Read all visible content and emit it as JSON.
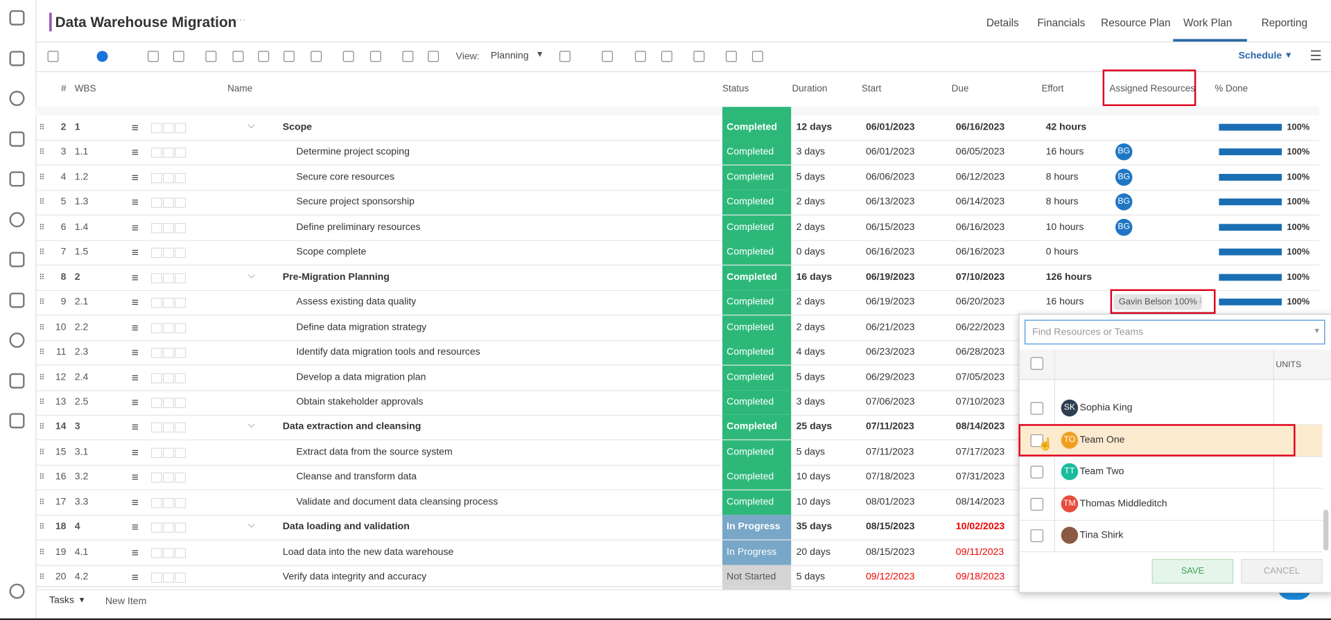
{
  "header": {
    "title": "Data Warehouse Migration",
    "nav": [
      "Details",
      "Financials",
      "Resource Plan",
      "Work Plan",
      "Reporting"
    ],
    "active_nav": 3
  },
  "toolbar": {
    "view_label": "View:",
    "view": "Planning",
    "schedule": "Schedule"
  },
  "columns": [
    "#",
    "WBS",
    "Name",
    "Status",
    "Duration",
    "Start",
    "Due",
    "Effort",
    "Assigned Resources",
    "% Done"
  ],
  "rows": [
    {
      "num": "2",
      "wbs": "1",
      "name": "Scope",
      "status": "Completed",
      "duration": "12 days",
      "start": "06/01/2023",
      "due": "06/16/2023",
      "effort": "42 hours",
      "done": "100%",
      "summary": true
    },
    {
      "num": "3",
      "wbs": "1.1",
      "name": "Determine project scoping",
      "status": "Completed",
      "duration": "3 days",
      "start": "06/01/2023",
      "due": "06/05/2023",
      "effort": "16 hours",
      "resource": "BG",
      "done": "100%"
    },
    {
      "num": "4",
      "wbs": "1.2",
      "name": "Secure core resources",
      "status": "Completed",
      "duration": "5 days",
      "start": "06/06/2023",
      "due": "06/12/2023",
      "effort": "8 hours",
      "resource": "BG",
      "done": "100%"
    },
    {
      "num": "5",
      "wbs": "1.3",
      "name": "Secure project sponsorship",
      "status": "Completed",
      "duration": "2 days",
      "start": "06/13/2023",
      "due": "06/14/2023",
      "effort": "8 hours",
      "resource": "BG",
      "done": "100%"
    },
    {
      "num": "6",
      "wbs": "1.4",
      "name": "Define preliminary resources",
      "status": "Completed",
      "duration": "2 days",
      "start": "06/15/2023",
      "due": "06/16/2023",
      "effort": "10 hours",
      "resource": "BG",
      "done": "100%"
    },
    {
      "num": "7",
      "wbs": "1.5",
      "name": "Scope complete",
      "status": "Completed",
      "duration": "0 days",
      "start": "06/16/2023",
      "due": "06/16/2023",
      "effort": "0 hours",
      "done": "100%"
    },
    {
      "num": "8",
      "wbs": "2",
      "name": "Pre-Migration Planning",
      "status": "Completed",
      "duration": "16 days",
      "start": "06/19/2023",
      "due": "07/10/2023",
      "effort": "126 hours",
      "done": "100%",
      "summary": true
    },
    {
      "num": "9",
      "wbs": "2.1",
      "name": "Assess existing data quality",
      "status": "Completed",
      "duration": "2 days",
      "start": "06/19/2023",
      "due": "06/20/2023",
      "effort": "16 hours",
      "resource_tag": "Gavin Belson 100%",
      "done": "100%"
    },
    {
      "num": "10",
      "wbs": "2.2",
      "name": "Define data migration strategy",
      "status": "Completed",
      "duration": "2 days",
      "start": "06/21/2023",
      "due": "06/22/2023"
    },
    {
      "num": "11",
      "wbs": "2.3",
      "name": "Identify data migration tools and resources",
      "status": "Completed",
      "duration": "4 days",
      "start": "06/23/2023",
      "due": "06/28/2023"
    },
    {
      "num": "12",
      "wbs": "2.4",
      "name": "Develop a data migration plan",
      "status": "Completed",
      "duration": "5 days",
      "start": "06/29/2023",
      "due": "07/05/2023"
    },
    {
      "num": "13",
      "wbs": "2.5",
      "name": "Obtain stakeholder approvals",
      "status": "Completed",
      "duration": "3 days",
      "start": "07/06/2023",
      "due": "07/10/2023"
    },
    {
      "num": "14",
      "wbs": "3",
      "name": "Data extraction and cleansing",
      "status": "Completed",
      "duration": "25 days",
      "start": "07/11/2023",
      "due": "08/14/2023",
      "summary": true
    },
    {
      "num": "15",
      "wbs": "3.1",
      "name": "Extract data from the source system",
      "status": "Completed",
      "duration": "5 days",
      "start": "07/11/2023",
      "due": "07/17/2023"
    },
    {
      "num": "16",
      "wbs": "3.2",
      "name": "Cleanse and transform data",
      "status": "Completed",
      "duration": "10 days",
      "start": "07/18/2023",
      "due": "07/31/2023"
    },
    {
      "num": "17",
      "wbs": "3.3",
      "name": "Validate and document data cleansing process",
      "status": "Completed",
      "duration": "10 days",
      "start": "08/01/2023",
      "due": "08/14/2023"
    },
    {
      "num": "18",
      "wbs": "4",
      "name": "Data loading and validation",
      "status": "In Progress",
      "duration": "35 days",
      "start": "08/15/2023",
      "due": "10/02/2023",
      "due_late": true,
      "summary": true
    },
    {
      "num": "19",
      "wbs": "4.1",
      "name": "Load data into the new data warehouse",
      "status": "In Progress",
      "duration": "20 days",
      "start": "08/15/2023",
      "due": "09/11/2023",
      "due_late": true,
      "flat": true
    },
    {
      "num": "20",
      "wbs": "4.2",
      "name": "Verify data integrity and accuracy",
      "status": "Not Started",
      "duration": "5 days",
      "start": "09/12/2023",
      "due": "09/18/2023",
      "start_late": true,
      "due_late": true,
      "flat": true
    }
  ],
  "popup": {
    "search_placeholder": "Find Resources or Teams",
    "units_header": "UNITS",
    "items": [
      {
        "initials": "SK",
        "name": "Sophia King",
        "color": "#2d3e50"
      },
      {
        "initials": "TO",
        "name": "Team One",
        "color": "#f0a020",
        "highlight": true
      },
      {
        "initials": "TT",
        "name": "Team Two",
        "color": "#1abc9c"
      },
      {
        "initials": "TM",
        "name": "Thomas Middleditch",
        "color": "#e74c3c"
      },
      {
        "name": "Tina Shirk",
        "color": "#8a5a44"
      }
    ],
    "save": "SAVE",
    "cancel": "CANCEL"
  },
  "footer": {
    "tasks": "Tasks",
    "new_item": "New Item"
  }
}
